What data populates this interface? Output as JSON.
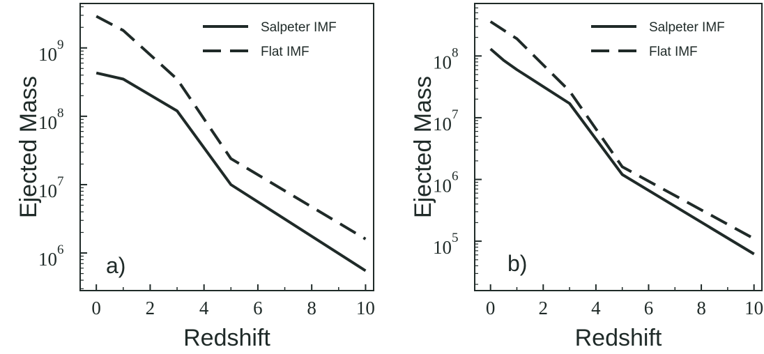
{
  "chart_data": [
    {
      "type": "line",
      "panel_label": "a)",
      "xlabel": "Redshift",
      "ylabel": "Ejected Mass",
      "xlim": [
        -0.6,
        10.3
      ],
      "ylim_log10": [
        5.45,
        9.65
      ],
      "y_scale": "log",
      "x_ticks": [
        0,
        2,
        4,
        6,
        8,
        10
      ],
      "y_ticks": [
        {
          "base": "10",
          "exp": "6",
          "value": 1000000
        },
        {
          "base": "10",
          "exp": "7",
          "value": 10000000
        },
        {
          "base": "10",
          "exp": "8",
          "value": 100000000
        },
        {
          "base": "10",
          "exp": "9",
          "value": 1000000000
        }
      ],
      "legend_position": "top-right",
      "series": [
        {
          "name": "Salpeter IMF",
          "style": "solid",
          "color": "#1f2a28",
          "x": [
            0,
            1,
            3,
            5,
            10
          ],
          "y": [
            430000000,
            350000000,
            120000000,
            10000000,
            550000
          ]
        },
        {
          "name": "Flat IMF",
          "style": "dashed",
          "color": "#1f2a28",
          "x": [
            0,
            1,
            3,
            5,
            10
          ],
          "y": [
            2900000000,
            1800000000,
            350000000,
            24000000,
            1600000
          ]
        }
      ]
    },
    {
      "type": "line",
      "panel_label": "b)",
      "xlabel": "Redshift",
      "ylabel": "Ejected Mass",
      "xlim": [
        -0.6,
        10.3
      ],
      "ylim_log10": [
        4.2,
        8.85
      ],
      "y_scale": "log",
      "x_ticks": [
        0,
        2,
        4,
        6,
        8,
        10
      ],
      "y_ticks": [
        {
          "base": "10",
          "exp": "5",
          "value": 100000
        },
        {
          "base": "10",
          "exp": "6",
          "value": 1000000
        },
        {
          "base": "10",
          "exp": "7",
          "value": 10000000
        },
        {
          "base": "10",
          "exp": "8",
          "value": 100000000
        }
      ],
      "legend_position": "top-right",
      "series": [
        {
          "name": "Salpeter IMF",
          "style": "solid",
          "color": "#1f2a28",
          "x": [
            0,
            0.5,
            1,
            3,
            5,
            10
          ],
          "y": [
            130000000,
            85000000,
            60000000,
            17000000,
            1200000,
            62000
          ]
        },
        {
          "name": "Flat IMF",
          "style": "dashed",
          "color": "#1f2a28",
          "x": [
            0,
            1,
            3,
            5,
            10
          ],
          "y": [
            360000000,
            190000000,
            27000000,
            1600000,
            110000
          ]
        }
      ]
    }
  ]
}
